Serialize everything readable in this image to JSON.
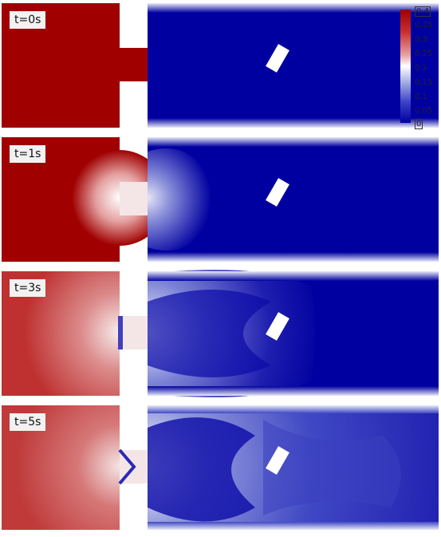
{
  "panels": [
    {
      "time_label": "t=0s"
    },
    {
      "time_label": "t=1s"
    },
    {
      "time_label": "t=3s"
    },
    {
      "time_label": "t=5s"
    }
  ],
  "colorbar": {
    "max_label": "0.4",
    "ticks": [
      "0.35",
      "0.3",
      "0.25",
      "0.2",
      "0.15",
      "0.1",
      "0.05"
    ],
    "min_label": "0"
  },
  "colors": {
    "high": "#a00000",
    "mid": "#ffffff",
    "low": "#0000a0"
  }
}
